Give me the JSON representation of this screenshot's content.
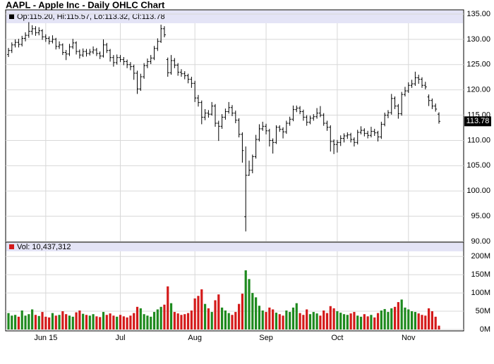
{
  "chart_data": {
    "type": "ohlc",
    "title": "AAPL - Apple Inc - Daily OHLC Chart",
    "legend_text": "Op:115.20, Hi:115.57, Lo:113.32, Cl:113.78",
    "categories": [
      null,
      null,
      null,
      null,
      null,
      null,
      null,
      null,
      null,
      null,
      null,
      "Jun 15",
      null,
      null,
      null,
      null,
      null,
      null,
      null,
      null,
      null,
      null,
      null,
      null,
      null,
      null,
      null,
      null,
      null,
      null,
      null,
      null,
      null,
      "Jul",
      null,
      null,
      null,
      null,
      null,
      null,
      null,
      null,
      null,
      null,
      null,
      null,
      null,
      null,
      null,
      null,
      null,
      null,
      null,
      null,
      null,
      "Aug",
      null,
      null,
      null,
      null,
      null,
      null,
      null,
      null,
      null,
      null,
      null,
      null,
      null,
      null,
      null,
      null,
      null,
      null,
      null,
      null,
      "Sep",
      null,
      null,
      null,
      null,
      null,
      null,
      null,
      null,
      null,
      null,
      null,
      null,
      null,
      null,
      null,
      null,
      null,
      null,
      null,
      null,
      "Oct",
      null,
      null,
      null,
      null,
      null,
      null,
      null,
      null,
      null,
      null,
      null,
      null,
      null,
      null,
      null,
      null,
      null,
      null,
      null,
      null,
      "Nov",
      null,
      null,
      null,
      null,
      null,
      null,
      null,
      null,
      null
    ],
    "open": [
      127.0,
      127.8,
      128.9,
      129.4,
      129.0,
      130.2,
      130.8,
      131.6,
      132.1,
      131.3,
      131.7,
      130.5,
      130.2,
      129.6,
      130.0,
      128.6,
      128.9,
      127.4,
      127.1,
      128.5,
      129.3,
      127.6,
      126.9,
      127.6,
      127.2,
      127.5,
      127.9,
      127.2,
      126.7,
      128.9,
      127.8,
      126.4,
      125.4,
      126.4,
      126.0,
      125.6,
      125.0,
      124.6,
      123.3,
      120.2,
      122.6,
      124.8,
      125.6,
      126.3,
      128.2,
      129.6,
      132.1,
      126.0,
      123.4,
      125.8,
      124.9,
      123.5,
      123.2,
      122.8,
      122.1,
      121.3,
      118.4,
      117.5,
      114.6,
      115.4,
      115.2,
      116.8,
      113.4,
      112.8,
      114.6,
      115.7,
      116.5,
      115.4,
      114.0,
      111.2,
      94.9,
      103.1,
      104.1,
      106.8,
      110.2,
      112.3,
      112.8,
      111.9,
      110.0,
      109.6,
      112.6,
      112.2,
      111.7,
      113.4,
      114.2,
      116.1,
      116.4,
      115.7,
      114.6,
      113.6,
      114.4,
      114.7,
      115.4,
      115.0,
      113.4,
      112.6,
      109.8,
      109.2,
      109.6,
      110.4,
      110.9,
      111.1,
      110.2,
      109.6,
      111.6,
      112.0,
      111.4,
      111.0,
      111.8,
      111.5,
      110.7,
      113.2,
      115.0,
      115.5,
      118.3,
      116.8,
      115.3,
      119.1,
      119.8,
      120.9,
      121.2,
      122.4,
      122.1,
      120.9,
      118.6,
      117.9,
      116.8,
      115.2
    ],
    "high": [
      128.3,
      129.4,
      130.0,
      130.1,
      130.7,
      131.4,
      133.4,
      132.8,
      132.6,
      132.4,
      132.0,
      131.0,
      130.6,
      130.8,
      130.3,
      129.6,
      129.2,
      127.9,
      129.1,
      130.1,
      129.6,
      128.0,
      128.2,
      128.1,
      128.1,
      128.6,
      128.3,
      127.6,
      130.0,
      129.3,
      128.1,
      126.9,
      127.0,
      126.9,
      126.5,
      126.0,
      125.5,
      125.0,
      123.8,
      123.2,
      125.3,
      126.2,
      126.9,
      128.7,
      130.2,
      132.9,
      132.6,
      126.4,
      126.9,
      126.3,
      125.3,
      124.1,
      123.7,
      123.2,
      122.6,
      121.8,
      119.0,
      117.9,
      116.2,
      116.0,
      117.6,
      117.2,
      113.9,
      115.2,
      116.3,
      117.6,
      117.0,
      115.9,
      114.4,
      111.6,
      108.8,
      106.0,
      107.2,
      111.1,
      113.2,
      113.7,
      113.3,
      112.3,
      110.4,
      113.0,
      113.0,
      112.6,
      113.9,
      114.7,
      116.9,
      116.9,
      116.8,
      116.1,
      115.0,
      114.9,
      115.2,
      116.4,
      116.8,
      115.4,
      113.9,
      113.0,
      110.2,
      110.1,
      111.0,
      111.4,
      111.6,
      111.5,
      110.6,
      112.1,
      112.8,
      112.4,
      111.9,
      112.7,
      112.3,
      111.9,
      113.7,
      115.5,
      116.0,
      119.2,
      118.7,
      117.2,
      119.6,
      120.6,
      121.5,
      122.0,
      123.6,
      123.0,
      122.5,
      121.6,
      119.1,
      118.3,
      117.3,
      115.57
    ],
    "low": [
      126.5,
      127.3,
      128.4,
      128.4,
      128.6,
      129.6,
      130.3,
      130.9,
      130.7,
      130.8,
      129.9,
      129.5,
      129.0,
      129.2,
      128.0,
      128.1,
      126.9,
      125.9,
      126.7,
      128.1,
      127.0,
      126.2,
      126.5,
      126.6,
      126.8,
      127.1,
      126.7,
      126.1,
      126.4,
      127.3,
      125.6,
      124.6,
      125.0,
      125.5,
      124.9,
      124.3,
      123.9,
      122.0,
      119.2,
      119.8,
      122.2,
      124.3,
      125.1,
      125.9,
      127.7,
      129.3,
      130.4,
      122.6,
      123.0,
      124.3,
      122.8,
      122.6,
      122.1,
      121.3,
      120.4,
      117.6,
      116.7,
      113.2,
      114.0,
      114.5,
      114.9,
      112.7,
      109.9,
      112.3,
      114.1,
      115.3,
      114.8,
      113.4,
      110.6,
      105.6,
      92.0,
      103.0,
      103.5,
      106.4,
      109.8,
      111.9,
      111.2,
      108.8,
      107.4,
      109.3,
      111.7,
      110.4,
      111.3,
      112.9,
      113.8,
      115.6,
      115.2,
      113.9,
      112.9,
      113.2,
      113.9,
      114.3,
      114.6,
      112.9,
      111.9,
      107.8,
      107.3,
      107.6,
      108.9,
      109.6,
      110.3,
      109.6,
      108.8,
      109.2,
      111.2,
      110.8,
      110.4,
      110.6,
      110.9,
      109.8,
      110.3,
      112.8,
      114.4,
      115.1,
      116.2,
      114.3,
      114.9,
      118.7,
      119.4,
      120.4,
      120.8,
      121.2,
      120.4,
      120.1,
      116.8,
      116.2,
      115.7,
      113.32
    ],
    "close": [
      127.8,
      128.9,
      129.4,
      129.0,
      130.2,
      130.8,
      131.6,
      132.1,
      131.3,
      131.7,
      130.5,
      130.2,
      129.6,
      130.0,
      128.6,
      128.9,
      127.4,
      127.1,
      128.5,
      129.3,
      127.6,
      126.9,
      127.6,
      127.2,
      127.5,
      127.9,
      127.2,
      126.7,
      128.9,
      127.8,
      126.4,
      125.4,
      126.4,
      126.0,
      125.6,
      125.0,
      124.6,
      123.3,
      120.2,
      122.6,
      124.8,
      125.6,
      126.3,
      128.2,
      129.6,
      132.1,
      130.9,
      123.4,
      125.8,
      124.9,
      123.5,
      123.2,
      122.8,
      122.1,
      121.3,
      118.4,
      117.5,
      114.6,
      115.4,
      115.2,
      116.8,
      113.4,
      112.8,
      114.6,
      115.7,
      116.5,
      115.4,
      114.0,
      111.2,
      108.0,
      103.1,
      104.1,
      106.8,
      110.2,
      112.3,
      112.8,
      111.9,
      110.0,
      109.6,
      112.6,
      112.2,
      111.7,
      113.4,
      114.2,
      116.1,
      116.4,
      115.7,
      114.6,
      113.6,
      114.4,
      114.7,
      115.4,
      115.0,
      113.4,
      112.6,
      109.8,
      109.2,
      109.6,
      110.4,
      110.9,
      111.1,
      110.2,
      109.6,
      111.6,
      112.0,
      111.4,
      111.0,
      111.8,
      111.5,
      110.7,
      113.2,
      115.0,
      115.5,
      118.3,
      116.8,
      115.3,
      119.1,
      119.8,
      120.9,
      121.2,
      122.4,
      122.1,
      120.9,
      120.6,
      117.9,
      116.8,
      116.2,
      113.78
    ],
    "color": "#000000",
    "ylim": [
      90,
      135
    ],
    "yticks": [
      {
        "value": 90,
        "label": "90.00"
      },
      {
        "value": 95,
        "label": "95.00"
      },
      {
        "value": 100,
        "label": "100.00"
      },
      {
        "value": 105,
        "label": "105.00"
      },
      {
        "value": 110,
        "label": "110.00"
      },
      {
        "value": 115,
        "label": "115.00"
      },
      {
        "value": 120,
        "label": "120.00"
      },
      {
        "value": 125,
        "label": "125.00"
      },
      {
        "value": 130,
        "label": "130.00"
      },
      {
        "value": 135,
        "label": "135.00"
      }
    ],
    "grid": true,
    "volume": {
      "label": "Vol: 10,437,312",
      "up_color": "#1e8a1e",
      "down_color": "#d41a1a",
      "values": [
        45,
        38,
        40,
        35,
        52,
        38,
        42,
        55,
        40,
        37,
        48,
        35,
        33,
        45,
        38,
        40,
        50,
        42,
        38,
        35,
        47,
        52,
        43,
        40,
        38,
        42,
        36,
        34,
        48,
        40,
        44,
        38,
        35,
        40,
        36,
        33,
        38,
        45,
        62,
        58,
        42,
        38,
        35,
        48,
        55,
        62,
        68,
        118,
        72,
        48,
        44,
        40,
        42,
        45,
        52,
        85,
        92,
        110,
        70,
        58,
        48,
        80,
        96,
        60,
        52,
        45,
        40,
        48,
        70,
        98,
        162,
        138,
        100,
        88,
        65,
        52,
        48,
        60,
        55,
        46,
        42,
        38,
        52,
        48,
        60,
        72,
        45,
        40,
        55,
        42,
        48,
        44,
        38,
        52,
        45,
        64,
        58,
        50,
        46,
        42,
        40,
        44,
        48,
        38,
        35,
        42,
        36,
        40,
        33,
        45,
        52,
        56,
        48,
        58,
        62,
        75,
        82,
        60,
        55,
        50,
        48,
        44,
        40,
        38,
        58,
        50,
        35,
        10.437312
      ],
      "ylim": [
        0,
        210
      ],
      "yticks": [
        {
          "value": 0,
          "label": "0M"
        },
        {
          "value": 50,
          "label": "50M"
        },
        {
          "value": 100,
          "label": "100M"
        },
        {
          "value": 150,
          "label": "150M"
        },
        {
          "value": 200,
          "label": "200M"
        }
      ]
    }
  }
}
